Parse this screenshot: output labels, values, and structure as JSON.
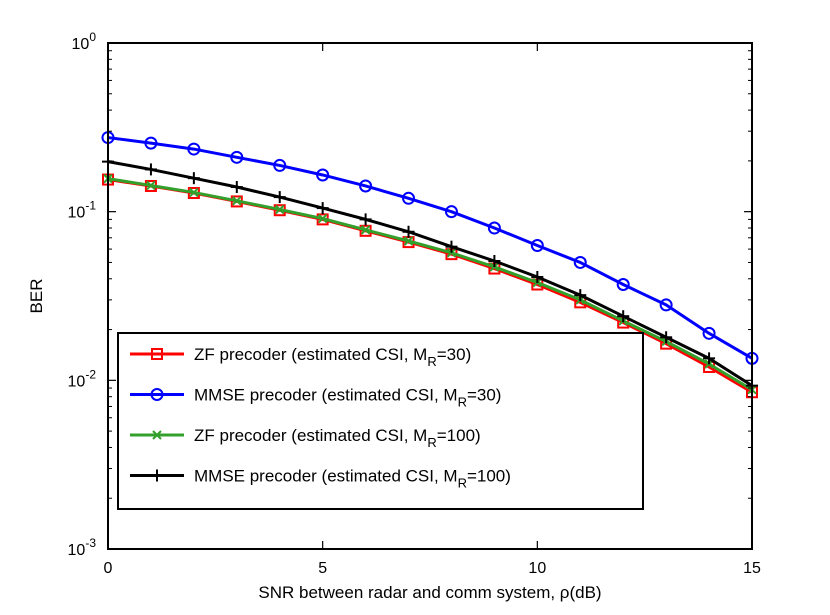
{
  "chart_data": {
    "type": "line",
    "title": "",
    "xlabel": "SNR between radar and comm system, ρ(dB)",
    "ylabel": "BER",
    "xlim": [
      0,
      15
    ],
    "ylim": [
      0.001,
      1
    ],
    "yscale": "log",
    "x_ticks": [
      0,
      5,
      10,
      15
    ],
    "y_ticks": [
      {
        "value": 1,
        "base": "10",
        "exp": "0"
      },
      {
        "value": 0.1,
        "base": "10",
        "exp": "-1"
      },
      {
        "value": 0.01,
        "base": "10",
        "exp": "-2"
      },
      {
        "value": 0.001,
        "base": "10",
        "exp": "-3"
      }
    ],
    "x": [
      0,
      1,
      2,
      3,
      4,
      5,
      6,
      7,
      8,
      9,
      10,
      11,
      12,
      13,
      14,
      15
    ],
    "series": [
      {
        "name": "ZF precoder (estimated CSI, M_R=30)",
        "legend_prefix": "ZF precoder (estimated CSI, M",
        "legend_sub": "R",
        "legend_suffix": "=30)",
        "color": "#ff0000",
        "marker": "square",
        "values": [
          0.155,
          0.142,
          0.129,
          0.115,
          0.102,
          0.09,
          0.077,
          0.066,
          0.056,
          0.046,
          0.037,
          0.029,
          0.022,
          0.0165,
          0.012,
          0.0085
        ]
      },
      {
        "name": "MMSE precoder (estimated CSI, M_R=30)",
        "legend_prefix": "MMSE precoder (estimated CSI, M",
        "legend_sub": "R",
        "legend_suffix": "=30)",
        "color": "#0000ff",
        "marker": "circle",
        "values": [
          0.275,
          0.255,
          0.235,
          0.21,
          0.188,
          0.165,
          0.142,
          0.12,
          0.1,
          0.08,
          0.063,
          0.05,
          0.037,
          0.028,
          0.019,
          0.0135
        ]
      },
      {
        "name": "ZF precoder (estimated CSI, M_R=100)",
        "legend_prefix": "ZF precoder (estimated CSI, M",
        "legend_sub": "R",
        "legend_suffix": "=100)",
        "color": "#33a02c",
        "marker": "x",
        "values": [
          0.157,
          0.143,
          0.13,
          0.116,
          0.103,
          0.091,
          0.078,
          0.067,
          0.057,
          0.047,
          0.038,
          0.03,
          0.0225,
          0.017,
          0.0125,
          0.0088
        ]
      },
      {
        "name": "MMSE precoder (estimated CSI, M_R=100)",
        "legend_prefix": "MMSE precoder (estimated CSI, M",
        "legend_sub": "R",
        "legend_suffix": "=100)",
        "color": "#000000",
        "marker": "plus",
        "values": [
          0.198,
          0.178,
          0.158,
          0.14,
          0.122,
          0.105,
          0.09,
          0.076,
          0.062,
          0.051,
          0.041,
          0.032,
          0.024,
          0.018,
          0.0135,
          0.0093
        ]
      }
    ],
    "legend_position": "lower-left",
    "grid": false
  }
}
